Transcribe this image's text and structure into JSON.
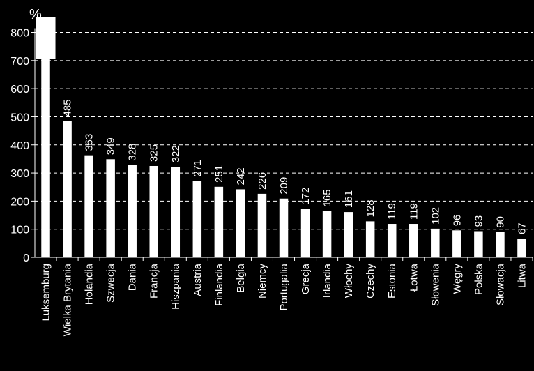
{
  "chart_data": {
    "type": "bar",
    "ylabel": "%",
    "ylim": [
      0,
      800
    ],
    "yticks": [
      0,
      100,
      200,
      300,
      400,
      500,
      600,
      700,
      800
    ],
    "grid": true,
    "colors": {
      "background": "#000000",
      "bar": "#ffffff",
      "grid": "#ffffff",
      "text": "#ffffff"
    },
    "categories": [
      "Luksemburg",
      "Wielka Brytania",
      "Holandia",
      "Szwecja",
      "Dania",
      "Francja",
      "Hiszpania",
      "Austria",
      "Finlandia",
      "Belgia",
      "Niemcy",
      "Portugalia",
      "Grecja",
      "Irlandia",
      "Włochy",
      "Czechy",
      "Estonia",
      "Łotwa",
      "Słowenia",
      "Węgry",
      "Polska",
      "Słowacja",
      "Litwa"
    ],
    "values": [
      850,
      485,
      363,
      349,
      328,
      325,
      322,
      271,
      251,
      242,
      226,
      209,
      172,
      165,
      161,
      128,
      119,
      119,
      102,
      96,
      93,
      90,
      67
    ],
    "value_labels": [
      "",
      "485",
      "363",
      "349",
      "328",
      "325",
      "322",
      "271",
      "251",
      "242",
      "226",
      "209",
      "172",
      "165",
      "161",
      "128",
      "119",
      "119",
      "102",
      "96",
      "93",
      "90",
      "67"
    ]
  }
}
